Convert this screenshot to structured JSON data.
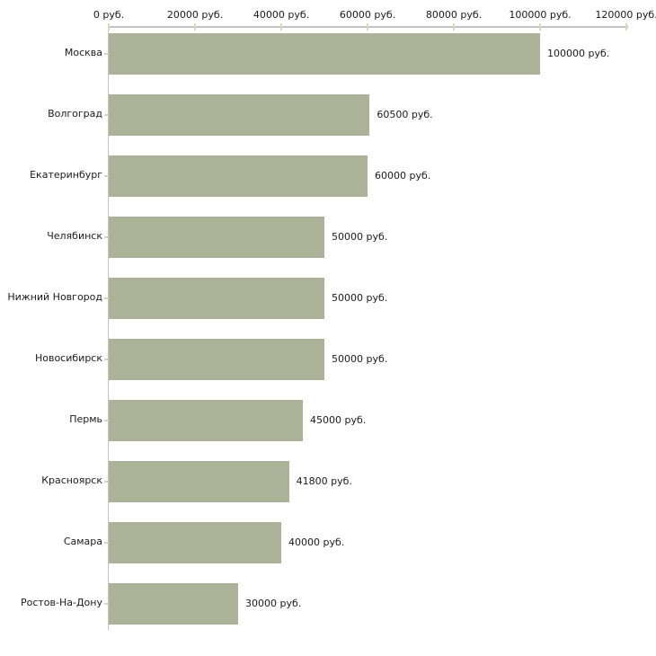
{
  "chart_data": {
    "type": "bar",
    "orientation": "horizontal",
    "title": "",
    "categories": [
      "Москва",
      "Волгоград",
      "Екатеринбург",
      "Челябинск",
      "Нижний Новгород",
      "Новосибирск",
      "Пермь",
      "Красноярск",
      "Самара",
      "Ростов-На-Дону"
    ],
    "values": [
      100000,
      60500,
      60000,
      50000,
      50000,
      50000,
      45000,
      41800,
      40000,
      30000
    ],
    "value_labels": [
      "100000 руб.",
      "60500 руб.",
      "60000 руб.",
      "50000 руб.",
      "50000 руб.",
      "50000 руб.",
      "45000 руб.",
      "41800 руб.",
      "40000 руб.",
      "30000 руб."
    ],
    "x_ticks": [
      0,
      20000,
      40000,
      60000,
      80000,
      100000,
      120000
    ],
    "x_tick_labels": [
      "0 руб.",
      "20000 руб.",
      "40000 руб.",
      "60000 руб.",
      "80000 руб.",
      "100000 руб.",
      "120000 руб."
    ],
    "xlim": [
      0,
      120000
    ],
    "unit": "руб.",
    "xlabel": "",
    "ylabel": "",
    "axis_position": "top",
    "grid": false,
    "legend": false,
    "colors": {
      "bar": "#abb297",
      "axis_line": "#c4c4c4",
      "tick": "#d9d9b9",
      "text": "#1a1a1a",
      "background": "#ffffff"
    }
  }
}
